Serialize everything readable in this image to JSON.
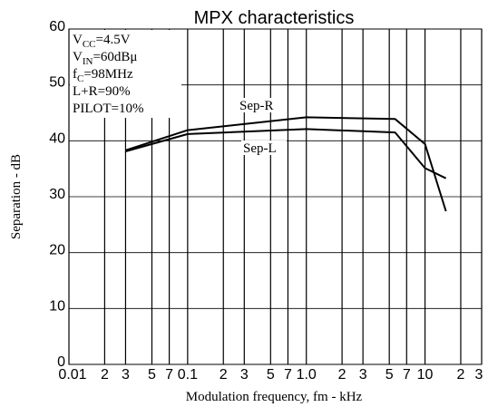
{
  "chart_data": {
    "type": "line",
    "title": "MPX characteristics",
    "xlabel": "Modulation frequency, fm - kHz",
    "ylabel": "Separation - dB",
    "x_scale": "log",
    "xlim": [
      0.01,
      30
    ],
    "ylim": [
      0,
      60
    ],
    "grid": true,
    "x_tick_labels": [
      {
        "value": 0.01,
        "label": "0.01"
      },
      {
        "value": 0.02,
        "label": "2"
      },
      {
        "value": 0.03,
        "label": "3"
      },
      {
        "value": 0.05,
        "label": "5"
      },
      {
        "value": 0.07,
        "label": "7"
      },
      {
        "value": 0.1,
        "label": "0.1"
      },
      {
        "value": 0.2,
        "label": "2"
      },
      {
        "value": 0.3,
        "label": "3"
      },
      {
        "value": 0.5,
        "label": "5"
      },
      {
        "value": 0.7,
        "label": "7"
      },
      {
        "value": 1.0,
        "label": "1.0"
      },
      {
        "value": 2,
        "label": "2"
      },
      {
        "value": 3,
        "label": "3"
      },
      {
        "value": 5,
        "label": "5"
      },
      {
        "value": 7,
        "label": "7"
      },
      {
        "value": 10,
        "label": "10"
      },
      {
        "value": 20,
        "label": "2"
      },
      {
        "value": 30,
        "label": "3"
      }
    ],
    "x_gridlines": [
      0.01,
      0.02,
      0.03,
      0.05,
      0.07,
      0.1,
      0.2,
      0.3,
      0.5,
      0.7,
      1.0,
      2,
      3,
      5,
      7,
      10,
      20,
      30
    ],
    "y_ticks": [
      0,
      10,
      20,
      30,
      40,
      50,
      60
    ],
    "series": [
      {
        "name": "Sep-R",
        "x": [
          0.03,
          0.1,
          1.0,
          5.6,
          10,
          15
        ],
        "y": [
          38.3,
          41.9,
          44.2,
          43.9,
          39.4,
          27.4
        ]
      },
      {
        "name": "Sep-L",
        "x": [
          0.03,
          0.1,
          1.0,
          5.6,
          10,
          15
        ],
        "y": [
          38.1,
          41.2,
          42.1,
          41.5,
          35.1,
          33.3
        ]
      }
    ],
    "conditions": [
      {
        "main": "V",
        "sub": "CC",
        "rest": "=4.5V"
      },
      {
        "main": "V",
        "sub": "IN",
        "rest": "=60dBμ"
      },
      {
        "main": "f",
        "sub": "C",
        "rest": "=98MHz"
      },
      {
        "main": "L+R=90%",
        "sub": "",
        "rest": ""
      },
      {
        "main": "PILOT=10%",
        "sub": "",
        "rest": ""
      }
    ]
  }
}
